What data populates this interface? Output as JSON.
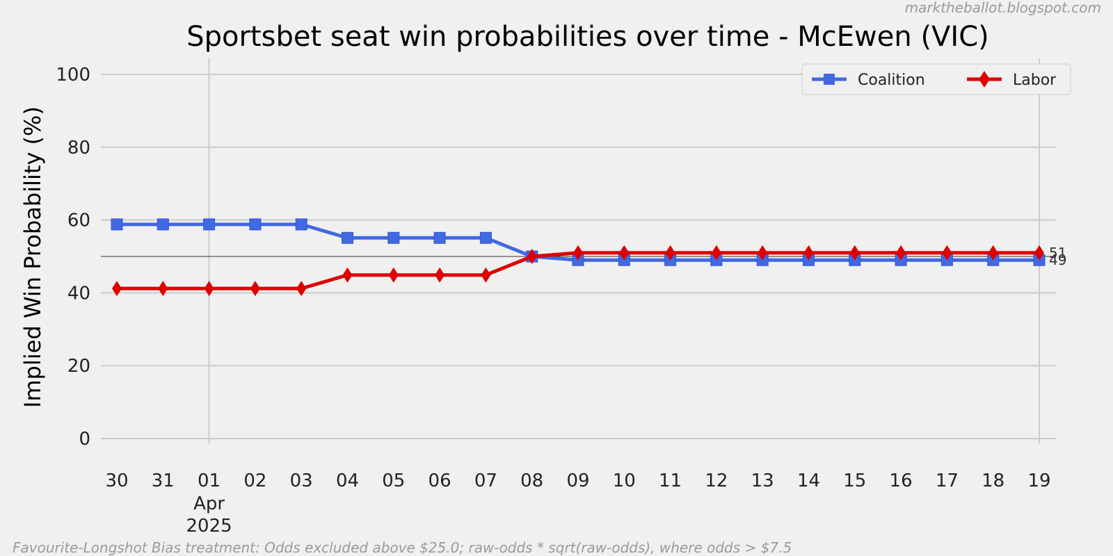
{
  "watermark": "marktheballot.blogspot.com",
  "footnote": "Favourite-Longshot Bias treatment: Odds excluded above $25.0; raw-odds * sqrt(raw-odds), where odds > $7.5",
  "chart_data": {
    "type": "line",
    "title": "Sportsbet seat win probabilities over time - McEwen (VIC)",
    "xlabel": "",
    "ylabel": "Implied Win Probability (%)",
    "ylim": [
      0,
      100
    ],
    "yticks": [
      0,
      20,
      40,
      60,
      80,
      100
    ],
    "reference_line": 50,
    "x": [
      "2025-03-30",
      "2025-03-31",
      "2025-04-01",
      "2025-04-02",
      "2025-04-03",
      "2025-04-04",
      "2025-04-05",
      "2025-04-06",
      "2025-04-07",
      "2025-04-08",
      "2025-04-09",
      "2025-04-10",
      "2025-04-11",
      "2025-04-12",
      "2025-04-13",
      "2025-04-14",
      "2025-04-15",
      "2025-04-16",
      "2025-04-17",
      "2025-04-18",
      "2025-04-19"
    ],
    "tick_labels": [
      "30",
      "31",
      "01",
      "02",
      "03",
      "04",
      "05",
      "06",
      "07",
      "08",
      "09",
      "10",
      "11",
      "12",
      "13",
      "14",
      "15",
      "16",
      "17",
      "18",
      "19"
    ],
    "tick_sublabels": [
      {
        "index": 2,
        "lines": [
          "Apr",
          "2025"
        ]
      }
    ],
    "grid": true,
    "legend_position": "top-right",
    "series": [
      {
        "name": "Coalition",
        "color": "#4169e1",
        "marker": "square",
        "values": [
          58.8,
          58.8,
          58.8,
          58.8,
          58.8,
          55.1,
          55.1,
          55.1,
          55.1,
          50,
          49,
          49,
          49,
          49,
          49,
          49,
          49,
          49,
          49,
          49,
          49
        ],
        "end_label": "49"
      },
      {
        "name": "Labor",
        "color": "#dd0000",
        "marker": "diamond",
        "values": [
          41.2,
          41.2,
          41.2,
          41.2,
          41.2,
          44.9,
          44.9,
          44.9,
          44.9,
          50,
          51,
          51,
          51,
          51,
          51,
          51,
          51,
          51,
          51,
          51,
          51
        ],
        "end_label": "51"
      }
    ]
  }
}
